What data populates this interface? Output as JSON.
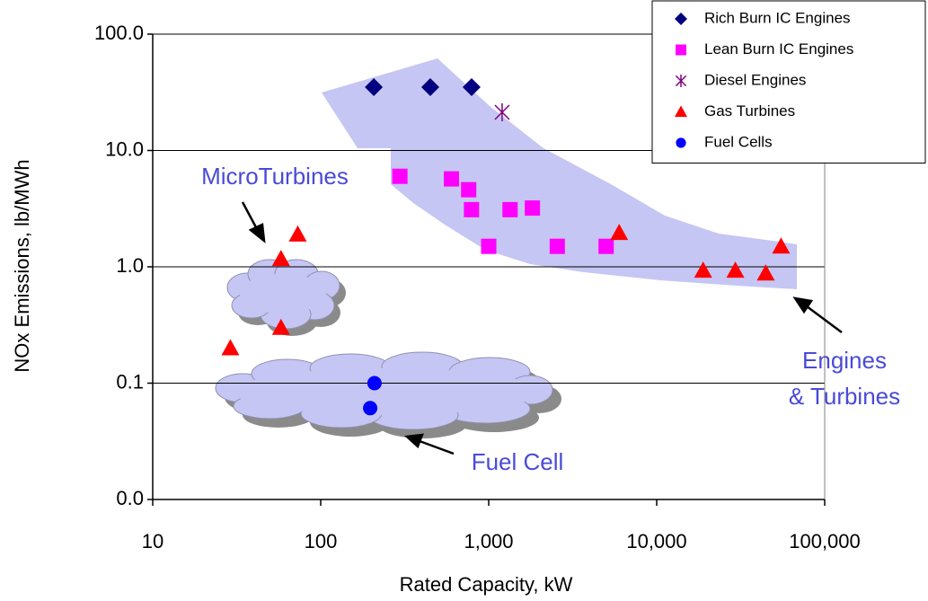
{
  "chart_data": {
    "type": "scatter",
    "x_label": "Rated Capacity, kW",
    "y_label": "NOx Emissions, lb/MWh",
    "xscale": "log",
    "yscale": "log",
    "xlim": [
      10,
      100000
    ],
    "ylim": [
      0.01,
      100
    ],
    "xticks": [
      10,
      100,
      {
        "value": 1000,
        "label": "1,000"
      },
      {
        "value": 10000,
        "label": "10,000"
      },
      {
        "value": 100000,
        "label": "100,000"
      }
    ],
    "yticks": [
      {
        "value": 0.01,
        "label": "0.0"
      },
      0.1,
      {
        "value": 1,
        "label": "1.0"
      },
      {
        "value": 10,
        "label": "10.0"
      },
      {
        "value": 100,
        "label": "100.0"
      }
    ],
    "grid": true,
    "legend": "upper right",
    "annotations": [
      {
        "lines": [
          "MicroTurbines"
        ]
      },
      {
        "lines": [
          "Engines",
          "& Turbines"
        ]
      },
      {
        "lines": [
          "Fuel Cell"
        ]
      }
    ],
    "series": [
      {
        "name": "Rich Burn IC Engines",
        "color": "#000080",
        "marker": "diamond",
        "x": [
          207,
          449,
          791
        ],
        "values": [
          35,
          35,
          35
        ]
      },
      {
        "name": "Lean Burn IC Engines",
        "color": "#ff00ff",
        "marker": "square",
        "x": [
          296,
          600,
          760,
          790,
          1000,
          1340,
          1820,
          2560,
          5000
        ],
        "values": [
          6.0,
          5.7,
          4.6,
          3.1,
          1.5,
          3.1,
          3.2,
          1.5,
          1.5
        ]
      },
      {
        "name": "Diesel Engines",
        "color": "#800080",
        "marker": "asterisk",
        "x": [
          1202
        ],
        "values": [
          21.3
        ]
      },
      {
        "name": "Gas Turbines",
        "color": "#ff0000",
        "marker": "triangle",
        "x": [
          29,
          58,
          73,
          58,
          5980,
          18900,
          29400,
          44600,
          55000
        ],
        "values": [
          0.2,
          1.17,
          1.9,
          0.3,
          1.96,
          0.93,
          0.93,
          0.88,
          1.5
        ]
      },
      {
        "name": "Fuel Cells",
        "color": "#0000ff",
        "marker": "circle",
        "x": [
          209,
          197
        ],
        "values": [
          0.1,
          0.061
        ]
      }
    ]
  }
}
